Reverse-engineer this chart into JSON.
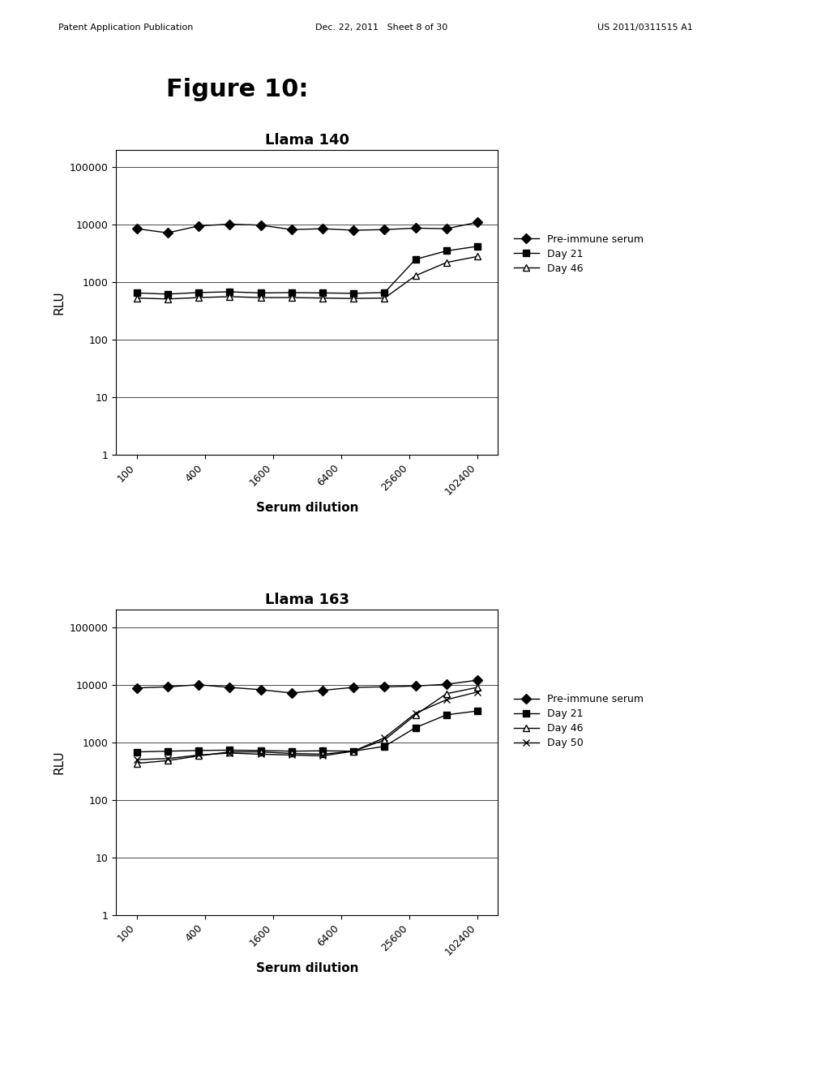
{
  "figure_title": "Figure 10:",
  "figure_title_fontsize": 22,
  "figure_title_fontweight": "bold",
  "chart1": {
    "title": "Llama 140",
    "title_fontsize": 13,
    "title_fontweight": "bold",
    "xlabel": "Serum dilution",
    "ylabel": "RLU",
    "x_labels": [
      "100",
      "400",
      "1600",
      "6400",
      "25600",
      "102400"
    ],
    "series": [
      {
        "label": "Pre-immune serum",
        "marker": "D",
        "markerfacecolor": "black",
        "markeredgecolor": "black",
        "color": "black",
        "markersize": 6,
        "y": [
          8500,
          7200,
          9500,
          10200,
          9800,
          8200,
          8500,
          8000,
          8200,
          8700,
          8500,
          11000
        ]
      },
      {
        "label": "Day 21",
        "marker": "s",
        "markerfacecolor": "black",
        "markeredgecolor": "black",
        "color": "black",
        "markersize": 6,
        "y": [
          650,
          620,
          660,
          680,
          650,
          660,
          650,
          640,
          660,
          2500,
          3500,
          4200
        ]
      },
      {
        "label": "Day 46",
        "marker": "^",
        "markerfacecolor": "white",
        "markeredgecolor": "black",
        "color": "black",
        "markersize": 6,
        "y": [
          530,
          510,
          540,
          560,
          540,
          540,
          530,
          520,
          530,
          1300,
          2200,
          2800
        ]
      }
    ]
  },
  "chart2": {
    "title": "Llama 163",
    "title_fontsize": 13,
    "title_fontweight": "bold",
    "xlabel": "Serum dilution",
    "ylabel": "RLU",
    "x_labels": [
      "100",
      "400",
      "1600",
      "6400",
      "25600",
      "102400"
    ],
    "series": [
      {
        "label": "Pre-immune serum",
        "marker": "D",
        "markerfacecolor": "black",
        "markeredgecolor": "black",
        "color": "black",
        "markersize": 6,
        "y": [
          8800,
          9200,
          10000,
          9000,
          8200,
          7200,
          8000,
          9000,
          9200,
          9500,
          10200,
          12000
        ]
      },
      {
        "label": "Day 21",
        "marker": "s",
        "markerfacecolor": "black",
        "markeredgecolor": "black",
        "color": "black",
        "markersize": 6,
        "y": [
          680,
          700,
          720,
          730,
          720,
          700,
          710,
          700,
          850,
          1800,
          3000,
          3500
        ]
      },
      {
        "label": "Day 46",
        "marker": "^",
        "markerfacecolor": "white",
        "markeredgecolor": "black",
        "color": "black",
        "markersize": 6,
        "y": [
          430,
          480,
          580,
          680,
          680,
          640,
          620,
          700,
          1100,
          3000,
          7000,
          9000
        ]
      },
      {
        "label": "Day 50",
        "marker": "x",
        "markerfacecolor": "black",
        "markeredgecolor": "black",
        "color": "black",
        "markersize": 6,
        "y": [
          500,
          520,
          600,
          650,
          620,
          600,
          580,
          700,
          1200,
          3200,
          5500,
          7500
        ]
      }
    ]
  },
  "bg_color": "#ffffff",
  "legend_fontsize": 9,
  "axis_label_fontsize": 11,
  "axis_label_fontweight": "bold",
  "tick_fontsize": 9,
  "header_left": "Patent Application Publication",
  "header_mid": "Dec. 22, 2011   Sheet 8 of 30",
  "header_right": "US 2011/0311515 A1",
  "header_fontsize": 8
}
